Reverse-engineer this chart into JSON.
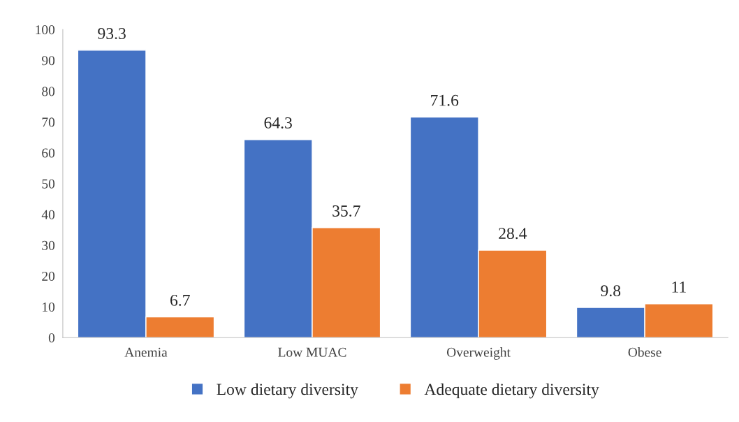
{
  "chart_data": {
    "type": "bar",
    "categories": [
      "Anemia",
      "Low MUAC",
      "Overweight",
      "Obese"
    ],
    "series": [
      {
        "name": "Low dietary diversity",
        "color": "#4472c4",
        "values": [
          93.3,
          64.3,
          71.6,
          9.8
        ]
      },
      {
        "name": "Adequate dietary diversity",
        "color": "#ed7d31",
        "values": [
          6.7,
          35.7,
          28.4,
          11
        ]
      }
    ],
    "ylim": [
      0,
      100
    ],
    "yticks": [
      0,
      10,
      20,
      30,
      40,
      50,
      60,
      70,
      80,
      90,
      100
    ],
    "grid": false,
    "legend": "bottom",
    "data_labels": true
  }
}
